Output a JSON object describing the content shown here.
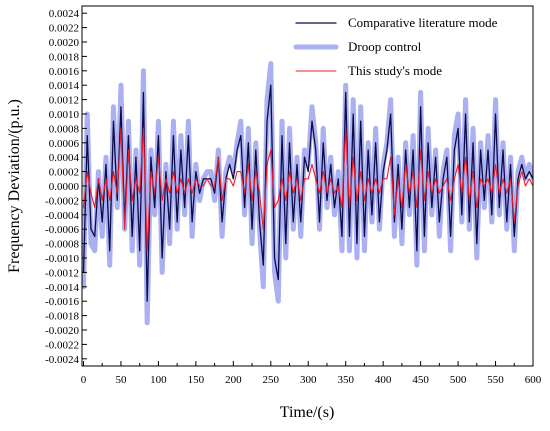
{
  "chart_data": {
    "type": "line",
    "title": "",
    "xlabel": "Time/(s)",
    "ylabel": "Frequency Deviation/(p.u.)",
    "xlim": [
      -2,
      600
    ],
    "ylim": [
      -0.0025,
      0.0025
    ],
    "x_ticks": [
      0,
      50,
      100,
      150,
      200,
      250,
      300,
      350,
      400,
      450,
      500,
      550,
      600
    ],
    "x_tick_labels": [
      "0",
      "50",
      "100",
      "150",
      "200",
      "250",
      "300",
      "350",
      "400",
      "450",
      "500",
      "550",
      "600"
    ],
    "y_ticks": [
      -0.0024,
      -0.0022,
      -0.002,
      -0.0018,
      -0.0016,
      -0.0014,
      -0.0012,
      -0.001,
      -0.0008,
      -0.0006,
      -0.0004,
      -0.0002,
      0,
      0.0002,
      0.0004,
      0.0006,
      0.0008,
      0.001,
      0.0012,
      0.0014,
      0.0016,
      0.0018,
      0.002,
      0.0022,
      0.0024
    ],
    "y_tick_labels": [
      "-0.0024",
      "-0.0022",
      "-0.0020",
      "-0.0018",
      "-0.0016",
      "-0.0014",
      "-0.0012",
      "-0.0010",
      "-0.0008",
      "-0.0006",
      "-0.0004",
      "-0.0002",
      "0.0000",
      "0.0002",
      "0.0004",
      "0.0006",
      "0.0008",
      "0.0010",
      "0.0012",
      "0.0014",
      "0.0016",
      "0.0018",
      "0.0020",
      "0.0022",
      "0.0024"
    ],
    "grid": false,
    "legend_position": "top-right",
    "series": [
      {
        "name": "Droop control",
        "color": "#aab0f2",
        "x": [
          0,
          5,
          10,
          15,
          20,
          25,
          30,
          35,
          40,
          45,
          50,
          55,
          60,
          65,
          70,
          75,
          80,
          85,
          90,
          95,
          100,
          105,
          110,
          115,
          120,
          125,
          130,
          135,
          140,
          145,
          150,
          155,
          160,
          165,
          170,
          175,
          180,
          185,
          190,
          195,
          200,
          205,
          210,
          215,
          220,
          225,
          230,
          235,
          240,
          245,
          250,
          255,
          260,
          265,
          270,
          275,
          280,
          285,
          290,
          295,
          300,
          305,
          310,
          315,
          320,
          325,
          330,
          335,
          340,
          345,
          350,
          355,
          360,
          365,
          370,
          375,
          380,
          385,
          390,
          395,
          400,
          405,
          410,
          415,
          420,
          425,
          430,
          435,
          440,
          445,
          450,
          455,
          460,
          465,
          470,
          475,
          480,
          485,
          490,
          495,
          500,
          505,
          510,
          515,
          520,
          525,
          530,
          535,
          540,
          545,
          550,
          555,
          560,
          565,
          570,
          575,
          580,
          585,
          590,
          595,
          600
        ],
        "y": [
          -0.0014,
          0.001,
          -0.0008,
          -0.0009,
          0.0002,
          -0.0007,
          0.0004,
          -0.0011,
          0.0011,
          -0.0003,
          0.0014,
          -0.0006,
          0.0009,
          -0.0009,
          0.0005,
          -0.0011,
          0.0016,
          -0.0019,
          0.0005,
          -0.0004,
          0.0009,
          -0.0012,
          0.0003,
          -0.0008,
          0.0009,
          -0.0006,
          0.0007,
          -0.0004,
          0.0009,
          -0.0007,
          0.0003,
          -0.0002,
          0.0001,
          0.0002,
          0.0002,
          -0.0002,
          0.0005,
          -0.0007,
          0.0002,
          0.0004,
          0.0002,
          0.0006,
          0.0009,
          -0.0004,
          0.0008,
          -0.0008,
          0.0006,
          -0.0006,
          -0.0014,
          0.0012,
          0.0017,
          -0.0012,
          -0.0016,
          0.0009,
          -0.001,
          0.0008,
          -0.0006,
          0.0004,
          -0.0007,
          0.0005,
          0.0003,
          0.0011,
          0.0006,
          -0.0006,
          0.0008,
          -0.0003,
          0.0004,
          -0.0004,
          0.0002,
          -0.0009,
          0.0014,
          -0.0009,
          0.0012,
          -0.001,
          0.0011,
          -0.0009,
          0.0006,
          -0.0005,
          0.0008,
          -0.0006,
          0.0003,
          0.0006,
          0.0012,
          -0.0007,
          0.0004,
          -0.0008,
          0.0006,
          -0.0004,
          0.0007,
          -0.0011,
          0.0013,
          -0.0009,
          0.0008,
          -0.0004,
          0.0005,
          -0.0007,
          0.0002,
          0.0005,
          -0.0009,
          0.0007,
          0.001,
          -0.0005,
          0.0012,
          -0.0006,
          0.0008,
          -0.001,
          0.0006,
          -0.0003,
          0.0007,
          -0.0005,
          0.0012,
          -0.0004,
          0.0006,
          -0.0006,
          0.0004,
          -0.0009,
          0.0002,
          0.0004,
          0.0001,
          0.0003,
          0.0001
        ]
      },
      {
        "name": "Comparative literature mode",
        "color": "#0c0c4a",
        "x": [
          0,
          5,
          10,
          15,
          20,
          25,
          30,
          35,
          40,
          45,
          50,
          55,
          60,
          65,
          70,
          75,
          80,
          85,
          90,
          95,
          100,
          105,
          110,
          115,
          120,
          125,
          130,
          135,
          140,
          145,
          150,
          155,
          160,
          165,
          170,
          175,
          180,
          185,
          190,
          195,
          200,
          205,
          210,
          215,
          220,
          225,
          230,
          235,
          240,
          245,
          250,
          255,
          260,
          265,
          270,
          275,
          280,
          285,
          290,
          295,
          300,
          305,
          310,
          315,
          320,
          325,
          330,
          335,
          340,
          345,
          350,
          355,
          360,
          365,
          370,
          375,
          380,
          385,
          390,
          395,
          400,
          405,
          410,
          415,
          420,
          425,
          430,
          435,
          440,
          445,
          450,
          455,
          460,
          465,
          470,
          475,
          480,
          485,
          490,
          495,
          500,
          505,
          510,
          515,
          520,
          525,
          530,
          535,
          540,
          545,
          550,
          555,
          560,
          565,
          570,
          575,
          580,
          585,
          590,
          595,
          600
        ],
        "y": [
          -0.0012,
          0.0007,
          -0.0006,
          -0.0007,
          0.0001,
          -0.0005,
          0.0003,
          -0.0009,
          0.0009,
          -0.0002,
          0.0011,
          -0.0005,
          0.0007,
          -0.0007,
          0.0004,
          -0.0009,
          0.0013,
          -0.0016,
          0.0004,
          -0.0003,
          0.0007,
          -0.001,
          0.0002,
          -0.0006,
          0.0007,
          -0.0005,
          0.0005,
          -0.0003,
          0.0007,
          -0.0005,
          0.0002,
          -0.0001,
          0.0001,
          0.0001,
          0.0001,
          -0.0001,
          0.0004,
          -0.0005,
          0.0001,
          0.0003,
          0.0001,
          0.0005,
          0.0007,
          -0.0003,
          0.0006,
          -0.0006,
          0.0005,
          -0.0005,
          -0.0011,
          0.0009,
          0.0014,
          -0.001,
          -0.0013,
          0.0007,
          -0.0008,
          0.0006,
          -0.0005,
          0.0003,
          -0.0005,
          0.0004,
          0.0002,
          0.0009,
          0.0005,
          -0.0005,
          0.0006,
          -0.0002,
          0.0003,
          -0.0003,
          0.0001,
          -0.0007,
          0.0013,
          -0.0007,
          0.001,
          -0.0008,
          0.0009,
          -0.0007,
          0.0005,
          -0.0004,
          0.0006,
          -0.0005,
          0.0002,
          0.0005,
          0.001,
          -0.0005,
          0.0003,
          -0.0006,
          0.0005,
          -0.0003,
          0.0005,
          -0.0009,
          0.0011,
          -0.0007,
          0.0006,
          -0.0003,
          0.0004,
          -0.0005,
          0.0001,
          0.0004,
          -0.0007,
          0.0005,
          0.0008,
          -0.0004,
          0.001,
          -0.0005,
          0.0006,
          -0.0008,
          0.0005,
          -0.0002,
          0.0005,
          -0.0004,
          0.001,
          -0.0003,
          0.0005,
          -0.0005,
          0.0003,
          -0.0007,
          0.0001,
          0.0003,
          0.0001,
          0.0002,
          0.0001
        ]
      },
      {
        "name": "This study's mode",
        "color": "#ee1c24",
        "x": [
          0,
          5,
          10,
          15,
          20,
          25,
          30,
          35,
          40,
          45,
          50,
          55,
          60,
          65,
          70,
          75,
          80,
          85,
          90,
          95,
          100,
          105,
          110,
          115,
          120,
          125,
          130,
          135,
          140,
          145,
          150,
          155,
          160,
          165,
          170,
          175,
          180,
          185,
          190,
          195,
          200,
          205,
          210,
          215,
          220,
          225,
          230,
          235,
          240,
          245,
          250,
          255,
          260,
          265,
          270,
          275,
          280,
          285,
          290,
          295,
          300,
          305,
          310,
          315,
          320,
          325,
          330,
          335,
          340,
          345,
          350,
          355,
          360,
          365,
          370,
          375,
          380,
          385,
          390,
          395,
          400,
          405,
          410,
          415,
          420,
          425,
          430,
          435,
          440,
          445,
          450,
          455,
          460,
          465,
          470,
          475,
          480,
          485,
          490,
          495,
          500,
          505,
          510,
          515,
          520,
          525,
          530,
          535,
          540,
          545,
          550,
          555,
          560,
          565,
          570,
          575,
          580,
          585,
          590,
          595,
          600
        ],
        "y": [
          -0.0003,
          0.0002,
          -0.0001,
          -0.0003,
          0.0001,
          -0.0002,
          0.0001,
          -0.0002,
          0.0002,
          -0.0001,
          0.0008,
          -0.0006,
          0.0005,
          -0.0002,
          0.0001,
          -0.0001,
          0.0008,
          -0.0009,
          0.0002,
          -0.0001,
          0.0004,
          -0.0002,
          0.0001,
          -0.0001,
          0.0002,
          -0.0001,
          0.0001,
          -0.0001,
          0.0001,
          -0.0001,
          0.0001,
          0.0,
          0.0,
          0.0001,
          0.0,
          0.0,
          0.0004,
          -0.0002,
          0.0001,
          0.0001,
          0.0,
          0.0002,
          0.0002,
          -0.0001,
          0.0003,
          -0.0002,
          0.0002,
          -0.0001,
          -0.0006,
          0.0003,
          0.0005,
          -0.0003,
          -0.0002,
          0.0001,
          -0.0002,
          0.0002,
          -0.0001,
          0.0001,
          -0.0002,
          0.0001,
          0.0001,
          0.0003,
          0.0001,
          -0.0001,
          0.0002,
          -0.0001,
          0.0001,
          -0.0001,
          0.0,
          -0.0003,
          0.0008,
          -0.0003,
          0.0004,
          -0.0002,
          0.0002,
          -0.0002,
          0.0001,
          -0.0001,
          0.0001,
          -0.0001,
          0.0001,
          0.0001,
          0.0004,
          -0.0004,
          0.0001,
          -0.0003,
          0.0003,
          -0.0001,
          0.0002,
          -0.0003,
          0.0005,
          -0.0002,
          0.0002,
          -0.0001,
          0.0001,
          -0.0001,
          0.0,
          0.0001,
          -0.0002,
          0.0001,
          0.0003,
          -0.0001,
          0.0004,
          -0.0002,
          0.0002,
          -0.0003,
          0.0001,
          0.0,
          0.0001,
          -0.0001,
          0.0003,
          -0.0001,
          0.0001,
          -0.0001,
          0.0001,
          -0.0005,
          0.0,
          0.0002,
          0.0,
          0.0001,
          0.0
        ]
      }
    ],
    "legend_order": [
      "Comparative literature mode",
      "Droop control",
      "This study's mode"
    ]
  }
}
